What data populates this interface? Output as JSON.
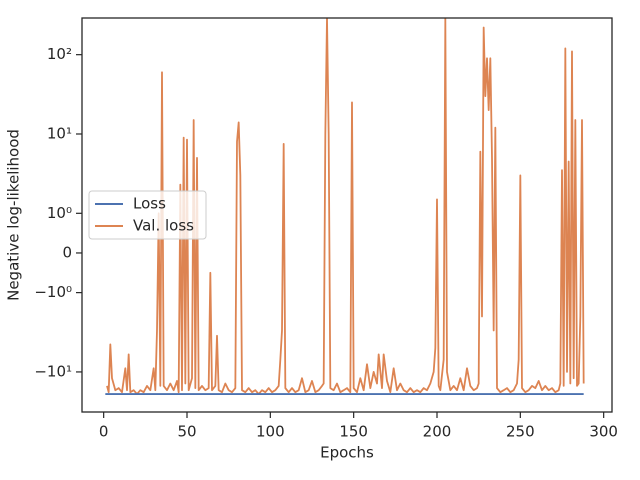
{
  "chart_data": {
    "type": "line",
    "xlabel": "Epochs",
    "ylabel": "Negative log-likelihood",
    "yscale": "symlog",
    "linthresh": 1,
    "xlim": [
      -13,
      305
    ],
    "xticks": [
      0,
      50,
      100,
      150,
      200,
      250,
      300
    ],
    "ylim": [
      -32,
      290
    ],
    "yticks": [
      {
        "value": 100,
        "label": "10²"
      },
      {
        "value": 10,
        "label": "10¹"
      },
      {
        "value": 1,
        "label": "10⁰"
      },
      0,
      {
        "value": -1,
        "label": "−10⁰"
      },
      {
        "value": -10,
        "label": "−10¹"
      }
    ],
    "legend": "center left",
    "series": [
      {
        "name": "Loss",
        "color": "#4c72b0",
        "x": [
          1,
          288
        ],
        "values": [
          -19,
          -19
        ]
      },
      {
        "name": "Val. loss",
        "color": "#dd8452",
        "x": [
          2,
          3,
          4,
          5,
          7,
          9,
          11,
          13,
          14,
          15,
          16,
          18,
          20,
          22,
          24,
          26,
          28,
          30,
          31,
          32,
          33,
          34,
          35,
          36,
          38,
          40,
          42,
          44,
          45,
          46,
          47,
          48,
          49,
          50,
          51,
          53,
          54,
          55,
          56,
          57,
          59,
          61,
          63,
          64,
          65,
          67,
          68,
          69,
          71,
          73,
          75,
          77,
          79,
          80,
          81,
          82,
          83,
          85,
          87,
          89,
          91,
          93,
          95,
          97,
          99,
          101,
          103,
          105,
          106,
          107,
          108,
          109,
          111,
          113,
          115,
          117,
          119,
          121,
          123,
          125,
          127,
          129,
          131,
          132,
          133,
          134,
          135,
          136,
          138,
          140,
          142,
          144,
          146,
          148,
          149,
          150,
          152,
          154,
          156,
          158,
          160,
          162,
          164,
          165,
          167,
          168,
          170,
          172,
          174,
          176,
          178,
          180,
          182,
          184,
          186,
          188,
          190,
          192,
          194,
          196,
          198,
          199,
          200,
          201,
          202,
          204,
          205,
          206,
          208,
          210,
          212,
          214,
          216,
          218,
          220,
          222,
          224,
          225,
          226,
          227,
          228,
          229,
          230,
          231,
          232,
          233,
          234,
          235,
          236,
          238,
          240,
          242,
          244,
          246,
          248,
          249,
          250,
          251,
          253,
          255,
          257,
          259,
          261,
          263,
          265,
          267,
          269,
          271,
          273,
          274,
          275,
          276,
          277,
          278,
          279,
          280,
          281,
          282,
          283,
          284,
          285,
          286,
          287,
          288
        ],
        "values": [
          -15,
          -18,
          -4.5,
          -12,
          -17,
          -16,
          -18,
          -9,
          -17,
          -6,
          -18,
          -17,
          -19,
          -17,
          -18,
          -15,
          -17,
          -9,
          -17,
          -3,
          1,
          -15,
          60,
          -15,
          -17,
          -14,
          -17,
          -13,
          -18,
          2.3,
          -17,
          9,
          -14,
          8.5,
          -17,
          -12,
          15,
          -16,
          5,
          -17,
          -15,
          -17,
          -16,
          -0.5,
          -17,
          -15,
          -3.5,
          -17,
          -18,
          -14,
          -17,
          -18,
          -16,
          8,
          14,
          3,
          -17,
          -18,
          -16,
          -18,
          -17,
          -19,
          -17,
          -18,
          -16,
          -18,
          -17,
          -15,
          -7,
          -3,
          7.5,
          -16,
          -18,
          -16,
          -18,
          -17,
          -12,
          -18,
          -17,
          -13,
          -18,
          -17,
          -15,
          -14,
          10,
          290,
          10,
          -16,
          -17,
          -14,
          -18,
          -17,
          -16,
          -18,
          25,
          -16,
          -18,
          -12,
          -17,
          -8,
          -16,
          -10,
          -14,
          -6,
          -16,
          -6,
          -13,
          -18,
          -9,
          -17,
          -14,
          -17,
          -18,
          -16,
          -18,
          -17,
          -18,
          -16,
          -17,
          -14,
          -10,
          -5,
          1.5,
          -15,
          -17,
          -7,
          290,
          -10,
          -17,
          -15,
          -17,
          -12,
          -17,
          -9,
          -15,
          -17,
          -16,
          -14,
          6,
          -2,
          220,
          30,
          90,
          20,
          90,
          5,
          -3,
          12,
          -16,
          -18,
          -17,
          -16,
          -18,
          -17,
          -14,
          -7,
          3,
          -16,
          -18,
          -17,
          -15,
          -16,
          -13,
          -17,
          -15,
          -17,
          -16,
          -18,
          -17,
          -14,
          3.5,
          -15,
          120,
          -10,
          4.5,
          -14,
          110,
          -12,
          15,
          -15,
          -14,
          -2,
          15,
          -14
        ]
      }
    ]
  }
}
